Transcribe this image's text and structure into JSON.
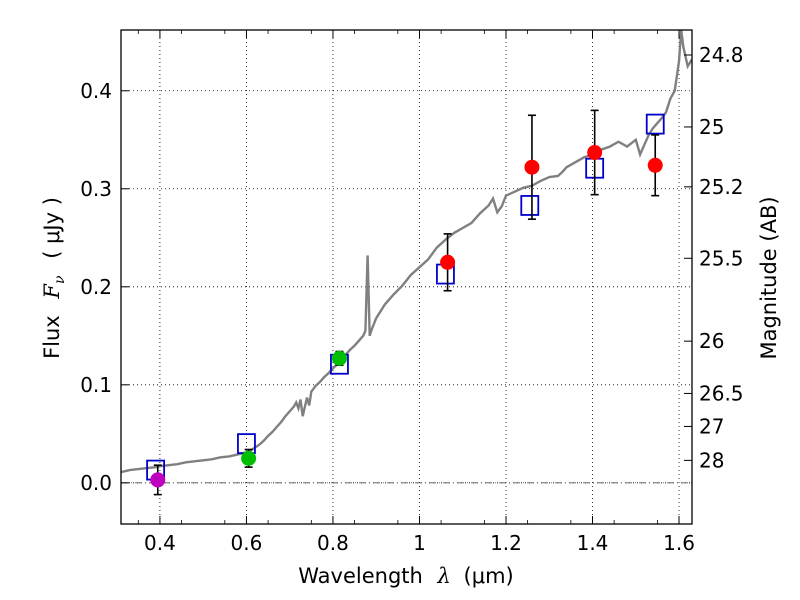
{
  "chart_data": {
    "type": "scatter",
    "xlabel_text": "Wavelength",
    "xlabel_symbol": "λ",
    "xlabel_units": "(μm)",
    "ylabel_text": "Flux",
    "ylabel_symbol": "F",
    "ylabel_subscript": "ν",
    "ylabel_units": "( μJy )",
    "right_ylabel": "Magnitude (AB)",
    "xlim": [
      0.31,
      1.63
    ],
    "ylim": [
      -0.042,
      0.462
    ],
    "x_ticks": [
      0.4,
      0.6,
      0.8,
      1.0,
      1.2,
      1.4,
      1.6
    ],
    "x_tick_labels": [
      "0.4",
      "0.6",
      "0.8",
      "1",
      "1.2",
      "1.4",
      "1.6"
    ],
    "y_ticks": [
      0.0,
      0.1,
      0.2,
      0.3,
      0.4
    ],
    "y_tick_labels": [
      "0.0",
      "0.1",
      "0.2",
      "0.3",
      "0.4"
    ],
    "mag_ticks": [
      24.8,
      25,
      25.2,
      25.5,
      26,
      26.5,
      27,
      28
    ],
    "mag_tick_labels": [
      "24.8",
      "25",
      "25.2",
      "25.5",
      "26",
      "26.5",
      "27",
      "28"
    ],
    "grid": true,
    "colors": {
      "model": "#808080",
      "purple": "#bf00bf",
      "green": "#00bf00",
      "red": "#ff0000",
      "box": "#0000cc",
      "axis": "#000000"
    },
    "model_spectrum": {
      "name": "model SED",
      "x": [
        0.31,
        0.33,
        0.35,
        0.37,
        0.39,
        0.4,
        0.42,
        0.44,
        0.46,
        0.48,
        0.5,
        0.52,
        0.54,
        0.56,
        0.58,
        0.6,
        0.61,
        0.62,
        0.63,
        0.64,
        0.65,
        0.66,
        0.67,
        0.68,
        0.69,
        0.7,
        0.71,
        0.715,
        0.72,
        0.725,
        0.73,
        0.74,
        0.745,
        0.75,
        0.76,
        0.77,
        0.78,
        0.79,
        0.8,
        0.81,
        0.82,
        0.83,
        0.84,
        0.85,
        0.86,
        0.87,
        0.875,
        0.88,
        0.885,
        0.89,
        0.9,
        0.92,
        0.94,
        0.96,
        0.98,
        1.0,
        1.02,
        1.04,
        1.06,
        1.08,
        1.1,
        1.12,
        1.14,
        1.16,
        1.17,
        1.18,
        1.19,
        1.2,
        1.21,
        1.22,
        1.24,
        1.26,
        1.28,
        1.3,
        1.32,
        1.33,
        1.34,
        1.36,
        1.38,
        1.4,
        1.42,
        1.44,
        1.46,
        1.48,
        1.5,
        1.51,
        1.52,
        1.53,
        1.54,
        1.55,
        1.56,
        1.57,
        1.58,
        1.59,
        1.6,
        1.605,
        1.61,
        1.62,
        1.63
      ],
      "y": [
        0.011,
        0.013,
        0.014,
        0.015,
        0.016,
        0.017,
        0.018,
        0.019,
        0.021,
        0.022,
        0.023,
        0.024,
        0.026,
        0.027,
        0.029,
        0.031,
        0.033,
        0.036,
        0.039,
        0.043,
        0.048,
        0.052,
        0.057,
        0.062,
        0.068,
        0.073,
        0.078,
        0.082,
        0.076,
        0.085,
        0.068,
        0.087,
        0.079,
        0.093,
        0.099,
        0.103,
        0.108,
        0.112,
        0.117,
        0.121,
        0.125,
        0.131,
        0.136,
        0.14,
        0.145,
        0.15,
        0.155,
        0.232,
        0.15,
        0.157,
        0.168,
        0.182,
        0.192,
        0.201,
        0.212,
        0.22,
        0.228,
        0.24,
        0.248,
        0.255,
        0.26,
        0.265,
        0.275,
        0.283,
        0.29,
        0.276,
        0.282,
        0.293,
        0.295,
        0.297,
        0.301,
        0.303,
        0.308,
        0.312,
        0.313,
        0.317,
        0.322,
        0.327,
        0.332,
        0.335,
        0.34,
        0.343,
        0.348,
        0.343,
        0.35,
        0.335,
        0.345,
        0.355,
        0.362,
        0.367,
        0.372,
        0.378,
        0.392,
        0.4,
        0.43,
        0.462,
        0.445,
        0.425,
        0.432
      ]
    },
    "observed_points": [
      {
        "name": "purple point",
        "x": 0.395,
        "y": 0.003,
        "err": 0.015,
        "color": "purple"
      },
      {
        "name": "green point 1",
        "x": 0.605,
        "y": 0.025,
        "err": 0.009,
        "color": "green"
      },
      {
        "name": "green point 2",
        "x": 0.815,
        "y": 0.127,
        "err": 0.007,
        "color": "green"
      },
      {
        "name": "red point 1",
        "x": 1.065,
        "y": 0.225,
        "err": 0.029,
        "color": "red"
      },
      {
        "name": "red point 2",
        "x": 1.26,
        "y": 0.322,
        "err": 0.053,
        "color": "red"
      },
      {
        "name": "red point 3",
        "x": 1.405,
        "y": 0.337,
        "err": 0.043,
        "color": "red"
      },
      {
        "name": "red point 4",
        "x": 1.545,
        "y": 0.324,
        "err": 0.031,
        "color": "red"
      }
    ],
    "model_boxes": [
      {
        "x": 0.39,
        "y": 0.013
      },
      {
        "x": 0.6,
        "y": 0.04
      },
      {
        "x": 0.815,
        "y": 0.121
      },
      {
        "x": 1.06,
        "y": 0.213
      },
      {
        "x": 1.255,
        "y": 0.283
      },
      {
        "x": 1.405,
        "y": 0.321
      },
      {
        "x": 1.545,
        "y": 0.366
      }
    ]
  }
}
